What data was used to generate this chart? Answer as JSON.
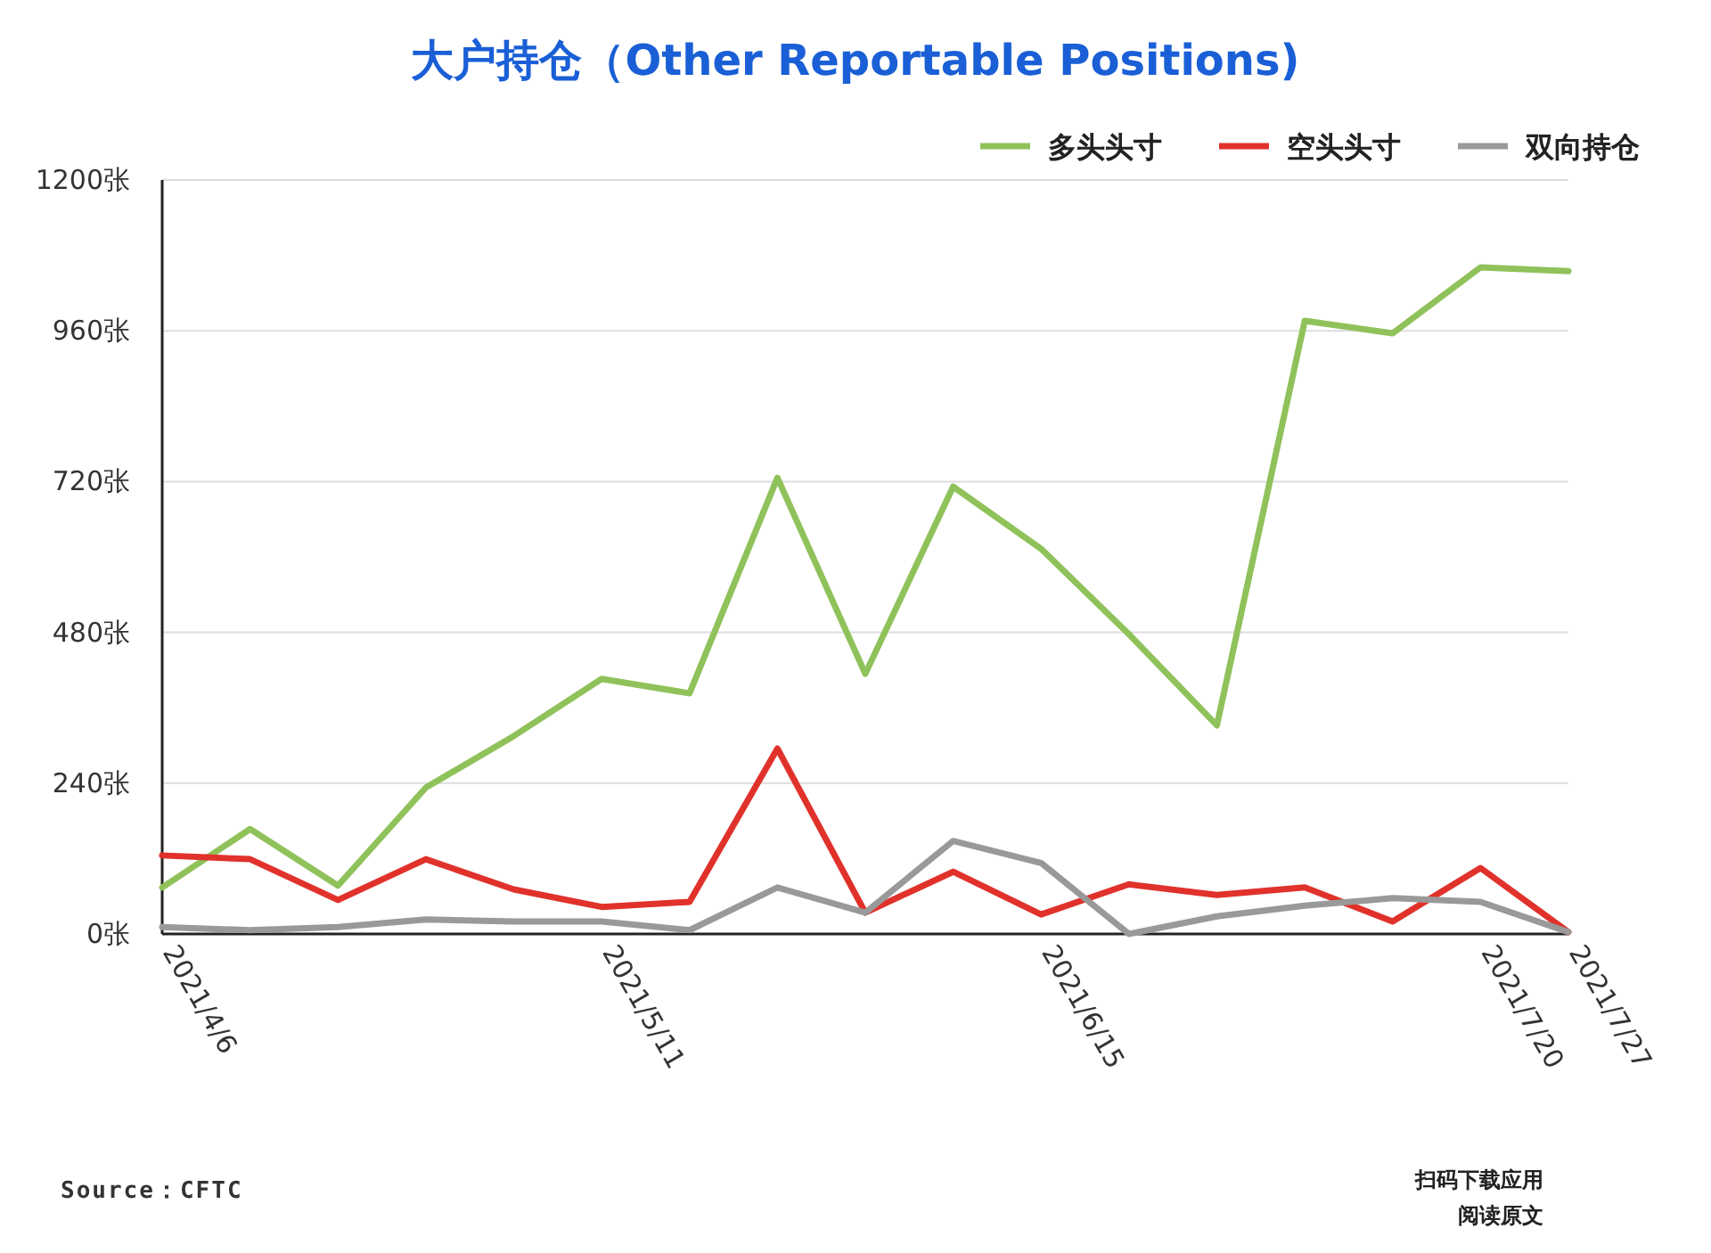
{
  "chart_data": {
    "type": "line",
    "title": "大户持仓（Other Reportable Positions)",
    "categories": [
      "2021/4/6",
      null,
      null,
      null,
      null,
      "2021/5/11",
      null,
      null,
      null,
      null,
      "2021/6/15",
      null,
      null,
      null,
      null,
      "2021/7/20",
      "2021/7/27"
    ],
    "series": [
      {
        "name": "多头头寸",
        "color": "#8fc25a",
        "values": [
          74,
          167,
          77,
          233,
          315,
          406,
          383,
          726,
          414,
          712,
          613,
          477,
          332,
          976,
          956,
          1061,
          1055
        ]
      },
      {
        "name": "空头头寸",
        "color": "#e0322b",
        "values": [
          125,
          119,
          54,
          119,
          71,
          43,
          51,
          295,
          34,
          99,
          31,
          79,
          62,
          74,
          20,
          105,
          3
        ]
      },
      {
        "name": "双向持仓",
        "color": "#999999",
        "values": [
          11,
          6,
          11,
          23,
          20,
          20,
          6,
          74,
          34,
          148,
          113,
          0,
          28,
          45,
          57,
          51,
          3
        ]
      }
    ],
    "ylim": [
      0,
      1200
    ],
    "yticks": [
      {
        "value": 0,
        "label": "0张"
      },
      {
        "value": 240,
        "label": "240张"
      },
      {
        "value": 480,
        "label": "480张"
      },
      {
        "value": 720,
        "label": "720张"
      },
      {
        "value": 960,
        "label": "960张"
      },
      {
        "value": 1200,
        "label": "1200张"
      }
    ],
    "grid": "y",
    "legend": "top right",
    "marker": "none",
    "line_style": "solid",
    "annotations": [
      "Source：CFTC",
      "扫码下载应用",
      "阅读原文"
    ]
  }
}
